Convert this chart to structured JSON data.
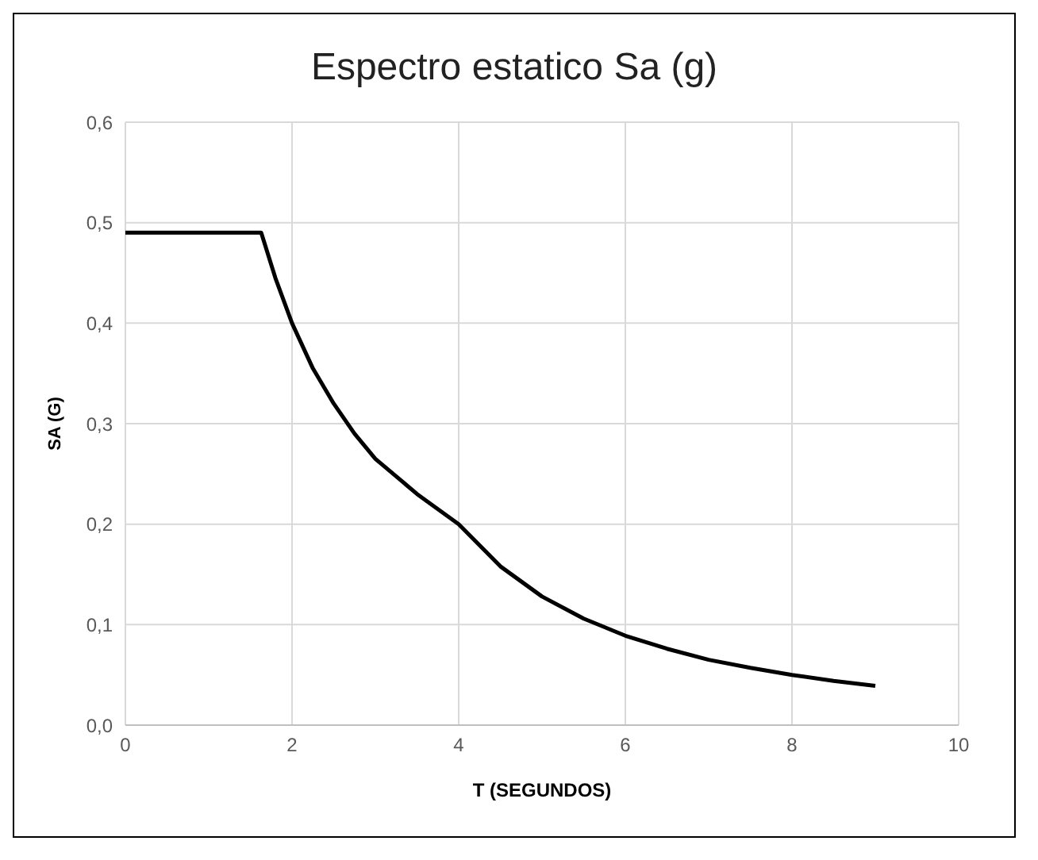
{
  "chart_data": {
    "type": "line",
    "title": "Espectro estatico Sa (g)",
    "xlabel": "T (SEGUNDOS)",
    "ylabel": "SA (G)",
    "x": [
      0,
      1.63,
      1.8,
      2,
      2.25,
      2.5,
      2.75,
      3,
      3.5,
      4,
      4.5,
      5,
      5.5,
      6,
      6.5,
      7,
      7.5,
      8,
      8.5,
      9
    ],
    "series": [
      {
        "color": "#000000",
        "values": [
          0.49,
          0.49,
          0.445,
          0.4,
          0.355,
          0.32,
          0.29,
          0.265,
          0.23,
          0.2,
          0.158,
          0.128,
          0.106,
          0.089,
          0.076,
          0.065,
          0.057,
          0.05,
          0.044,
          0.039
        ]
      }
    ],
    "xlim": [
      0,
      10
    ],
    "xticks": [
      0,
      2,
      4,
      6,
      8,
      10
    ],
    "ylim": [
      0,
      0.6
    ],
    "yticks": [
      {
        "value": 0,
        "label": "0,0"
      },
      {
        "value": 0.1,
        "label": "0,1"
      },
      {
        "value": 0.2,
        "label": "0,2"
      },
      {
        "value": 0.3,
        "label": "0,3"
      },
      {
        "value": 0.4,
        "label": "0,4"
      },
      {
        "value": 0.5,
        "label": "0,5"
      },
      {
        "value": 0.6,
        "label": "0,6"
      }
    ],
    "grid": true,
    "marker": "none",
    "line_style": "solid"
  }
}
